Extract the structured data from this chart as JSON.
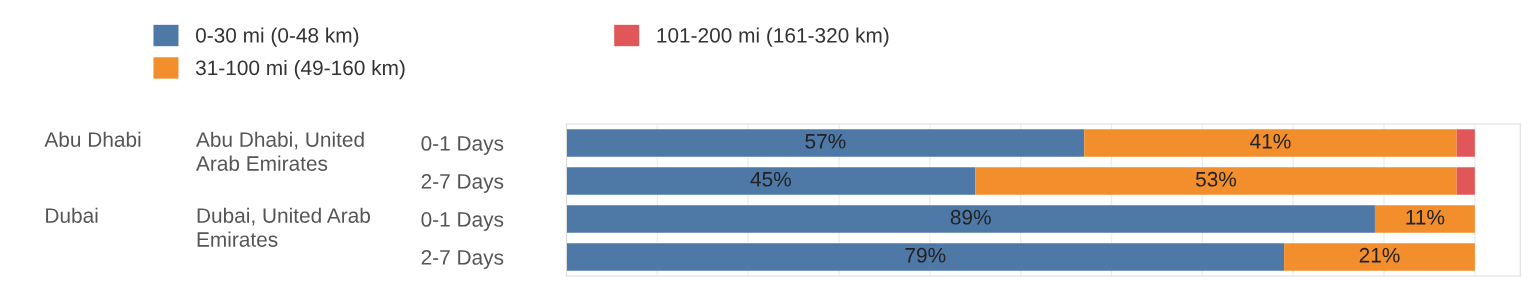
{
  "chart_data": {
    "type": "bar",
    "orientation": "horizontal",
    "stacked": true,
    "categories": [
      "0-1 Days",
      "2-7 Days",
      "0-1 Days",
      "2-7 Days"
    ],
    "series": [
      {
        "name": "0-30 mi (0-48 km)",
        "color": "#4e79a7",
        "values": [
          57,
          45,
          89,
          79
        ],
        "value_labels": [
          "57%",
          "45%",
          "89%",
          "79%"
        ]
      },
      {
        "name": "31-100 mi (49-160 km)",
        "color": "#f28e2b",
        "values": [
          41,
          53,
          11,
          21
        ],
        "value_labels": [
          "41%",
          "53%",
          "11%",
          "21%"
        ]
      },
      {
        "name": "101-200 mi (161-320 km)",
        "color": "#e15759",
        "values": [
          2,
          2,
          0,
          0
        ],
        "value_labels": [
          null,
          null,
          null,
          null
        ]
      }
    ],
    "annotations": [
      "Abu Dhabi",
      "Abu Dhabi, United\nArab Emirates",
      "Dubai",
      "Dubai, United Arab\nEmirates"
    ],
    "xlim": [
      0,
      105
    ],
    "xticks": [
      {
        "value": 0,
        "label": null
      },
      {
        "value": 10,
        "label": null
      },
      {
        "value": 20,
        "label": null
      },
      {
        "value": 30,
        "label": null
      },
      {
        "value": 40,
        "label": null
      },
      {
        "value": 50,
        "label": null
      },
      {
        "value": 60,
        "label": null
      },
      {
        "value": 70,
        "label": null
      },
      {
        "value": 80,
        "label": null
      },
      {
        "value": 90,
        "label": null
      },
      {
        "value": 100,
        "label": null
      }
    ],
    "tick_labels": "y",
    "grid": "x",
    "legend": "top"
  }
}
